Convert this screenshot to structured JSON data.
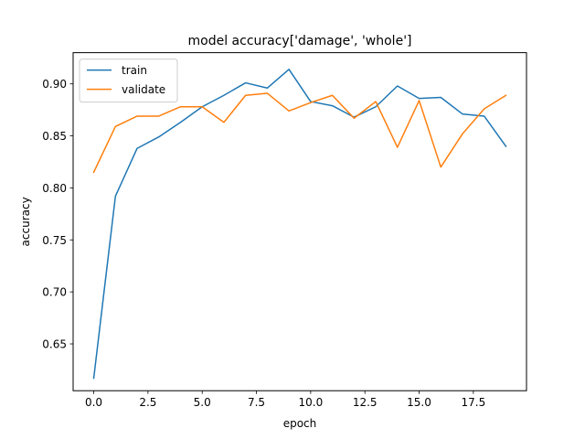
{
  "chart_data": {
    "type": "line",
    "title": "model accuracy['damage', 'whole']",
    "xlabel": "epoch",
    "ylabel": "accuracy",
    "xlim": [
      -0.95,
      19.95
    ],
    "ylim": [
      0.605,
      0.93
    ],
    "xticks": [
      0.0,
      2.5,
      5.0,
      7.5,
      10.0,
      12.5,
      15.0,
      17.5
    ],
    "yticks": [
      0.65,
      0.7,
      0.75,
      0.8,
      0.85,
      0.9
    ],
    "xtick_labels": [
      "0.0",
      "2.5",
      "5.0",
      "7.5",
      "10.0",
      "12.5",
      "15.0",
      "17.5"
    ],
    "ytick_labels": [
      "0.65",
      "0.70",
      "0.75",
      "0.80",
      "0.85",
      "0.90"
    ],
    "grid": false,
    "legend_position": "top-left",
    "x": [
      0,
      1,
      2,
      3,
      4,
      5,
      6,
      7,
      8,
      9,
      10,
      11,
      12,
      13,
      14,
      15,
      16,
      17,
      18,
      19
    ],
    "series": [
      {
        "name": "train",
        "color": "#1f77b4",
        "values": [
          0.617,
          0.792,
          0.838,
          0.849,
          0.863,
          0.878,
          0.889,
          0.901,
          0.896,
          0.914,
          0.883,
          0.879,
          0.868,
          0.878,
          0.898,
          0.886,
          0.887,
          0.871,
          0.869,
          0.84
        ]
      },
      {
        "name": "validate",
        "color": "#ff7f0e",
        "values": [
          0.815,
          0.859,
          0.869,
          0.869,
          0.878,
          0.878,
          0.863,
          0.889,
          0.891,
          0.874,
          0.882,
          0.889,
          0.867,
          0.883,
          0.839,
          0.884,
          0.82,
          0.852,
          0.876,
          0.889
        ]
      }
    ]
  }
}
